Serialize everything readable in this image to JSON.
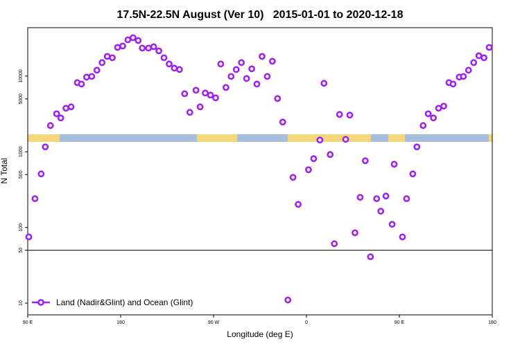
{
  "chart_data": {
    "type": "scatter",
    "title": "17.5N-22.5N August (Ver 10)   2015-01-01 to 2020-12-18",
    "xlabel": "Longitude (deg E)",
    "ylabel": "N Total",
    "log_y": true,
    "legend": "bottom left",
    "hline": 50,
    "xlim": [
      90,
      540
    ],
    "xticks": [
      {
        "value": 90,
        "label": "90 E"
      },
      {
        "value": 180,
        "label": "180"
      },
      {
        "value": 270,
        "label": "90 W"
      },
      {
        "value": 360,
        "label": "0"
      },
      {
        "value": 450,
        "label": "90 E"
      },
      {
        "value": 540,
        "label": "180"
      }
    ],
    "ylim": [
      7,
      43600
    ],
    "yticks": [
      10,
      50,
      100,
      500,
      1000,
      5000,
      10000
    ],
    "series": [
      {
        "name": "Land (Nadir&Glint) and Ocean (Glint)",
        "color": "#a020f0",
        "x": [
          91,
          97,
          103,
          107,
          112,
          118,
          122,
          127,
          132,
          138,
          142,
          147,
          152,
          157,
          162,
          167,
          172,
          177,
          182,
          187,
          192,
          197,
          201,
          207,
          212,
          217,
          222,
          227,
          232,
          237,
          242,
          247,
          253,
          257,
          262,
          267,
          272,
          277,
          282,
          287,
          292,
          297,
          302,
          307,
          312,
          317,
          322,
          327,
          332,
          337,
          342,
          347,
          352,
          362,
          367,
          373,
          377,
          383,
          387,
          392,
          398,
          402,
          407,
          412,
          417,
          422,
          428,
          432,
          437,
          443,
          445,
          453,
          457,
          463,
          467,
          473,
          478,
          483,
          488,
          493,
          498,
          502,
          508,
          512,
          517,
          522,
          527,
          532,
          537
        ],
        "values": [
          75,
          240,
          510,
          1160,
          2220,
          3180,
          2800,
          3760,
          3920,
          8190,
          7850,
          9690,
          9890,
          11960,
          15070,
          18200,
          17460,
          23930,
          24950,
          30140,
          32140,
          29510,
          23440,
          23440,
          24430,
          21530,
          17460,
          14450,
          12740,
          12210,
          5850,
          3320,
          6500,
          3920,
          5970,
          5610,
          5150,
          14450,
          7070,
          9890,
          12210,
          15070,
          9290,
          12470,
          7850,
          18200,
          9890,
          15710,
          5050,
          2470,
          11,
          459,
          202,
          579,
          811,
          1430,
          8020,
          919,
          61,
          3110,
          1460,
          3050,
          85,
          250,
          761,
          41,
          240,
          164,
          260,
          110,
          685,
          75,
          240,
          510,
          1160,
          2220,
          3180,
          2800,
          3760,
          4010,
          8190,
          7850,
          9690,
          9890,
          11960,
          15070,
          18580,
          17460,
          23930
        ]
      }
    ]
  }
}
